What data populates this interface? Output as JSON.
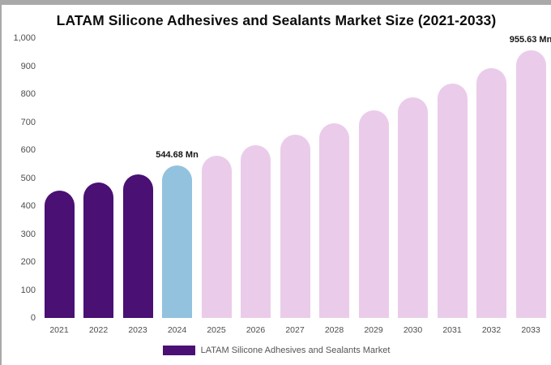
{
  "chart_data": {
    "type": "bar",
    "title": "LATAM Silicone Adhesives and Sealants Market Size (2021-2033)",
    "unit": "Mn",
    "ylim": [
      0,
      1000
    ],
    "grid": false,
    "y_ticks": [
      "1,000",
      "900",
      "800",
      "700",
      "600",
      "500",
      "400",
      "300",
      "200",
      "100",
      "0"
    ],
    "categories": [
      "2021",
      "2022",
      "2023",
      "2024",
      "2025",
      "2026",
      "2027",
      "2028",
      "2029",
      "2030",
      "2031",
      "2032",
      "2033"
    ],
    "values": [
      455,
      483,
      513,
      544.68,
      580,
      617,
      655,
      697,
      741,
      789,
      839,
      893,
      955.63
    ],
    "bars": [
      {
        "year": "2021",
        "value": 455,
        "color": "#4a1074"
      },
      {
        "year": "2022",
        "value": 483,
        "color": "#4a1074"
      },
      {
        "year": "2023",
        "value": 513,
        "color": "#4a1074"
      },
      {
        "year": "2024",
        "value": 544.68,
        "color": "#92c2de",
        "label": "544.68 Mn"
      },
      {
        "year": "2025",
        "value": 580,
        "color": "#eaccea"
      },
      {
        "year": "2026",
        "value": 617,
        "color": "#eaccea"
      },
      {
        "year": "2027",
        "value": 655,
        "color": "#eaccea"
      },
      {
        "year": "2028",
        "value": 697,
        "color": "#eaccea"
      },
      {
        "year": "2029",
        "value": 741,
        "color": "#eaccea"
      },
      {
        "year": "2030",
        "value": 789,
        "color": "#eaccea"
      },
      {
        "year": "2031",
        "value": 839,
        "color": "#eaccea"
      },
      {
        "year": "2032",
        "value": 893,
        "color": "#eaccea"
      },
      {
        "year": "2033",
        "value": 955.63,
        "color": "#eaccea",
        "label": "955.63 Mn"
      }
    ],
    "legend": {
      "label": "LATAM Silicone Adhesives and Sealants Market",
      "color": "#4a1074"
    },
    "colors": {
      "historical": "#4a1074",
      "current_year": "#92c2de",
      "forecast": "#eaccea"
    }
  }
}
